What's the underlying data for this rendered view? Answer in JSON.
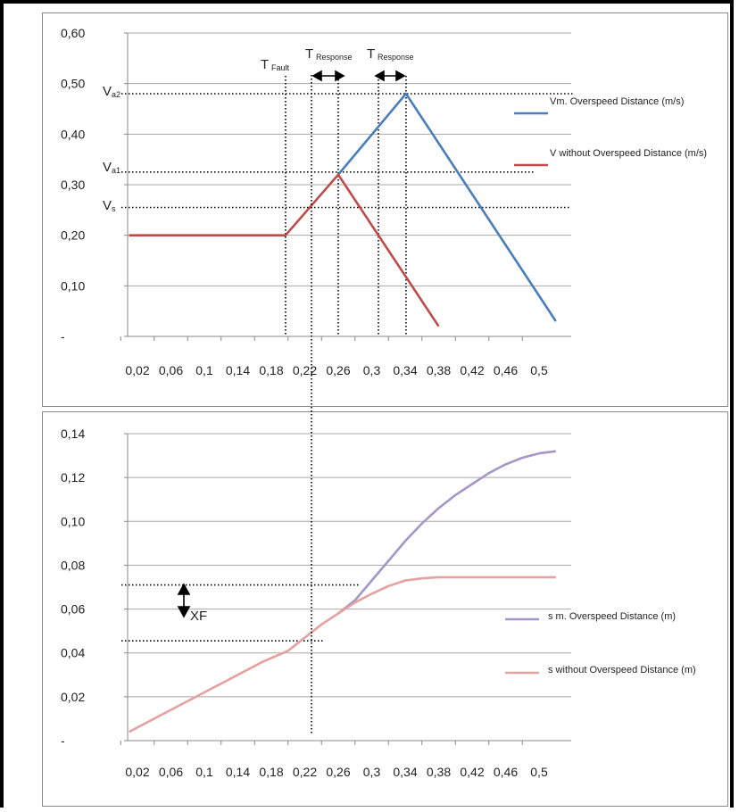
{
  "chart_data": [
    {
      "type": "line",
      "y_ticks": [
        "0,60",
        "0,50",
        "0,40",
        "0,30",
        "0,20",
        "0,10",
        "-"
      ],
      "x_ticks": [
        "0,02",
        "0,06",
        "0,1",
        "0,14",
        "0,18",
        "0,22",
        "0,26",
        "0,3",
        "0,34",
        "0,38",
        "0,42",
        "0,46",
        "0,5"
      ],
      "ylim": [
        0,
        0.6
      ],
      "grid": true,
      "legend_position": "right",
      "series": [
        {
          "name": "Vm. Overspeed Distance (m/s)",
          "color": "#4a7ebb",
          "points": [
            [
              0.26,
              0.32
            ],
            [
              0.341,
              0.48
            ],
            [
              0.52,
              0.03
            ]
          ]
        },
        {
          "name": "V without Overspeed Distance (m/s)",
          "color": "#be4b48",
          "points": [
            [
              0.01,
              0.2
            ],
            [
              0.197,
              0.2
            ],
            [
              0.26,
              0.32
            ],
            [
              0.38,
              0.02
            ]
          ]
        }
      ],
      "annotations": {
        "t_fault": {
          "main": "T",
          "sub": "Fault"
        },
        "t_response_1": {
          "main": "T",
          "sub": "Response"
        },
        "t_response_2": {
          "main": "T",
          "sub": "Response"
        },
        "va2": {
          "main": "V",
          "sub": "a2"
        },
        "va1": {
          "main": "V",
          "sub": "a1"
        },
        "vs": {
          "main": "V",
          "sub": "s"
        }
      },
      "markers": {
        "v_levels": {
          "va2": 0.48,
          "va1": 0.325,
          "vs": 0.255
        },
        "t_lines": [
          0.197,
          0.228,
          0.26,
          0.308,
          0.341
        ]
      }
    },
    {
      "type": "line",
      "y_ticks": [
        "0,14",
        "0,12",
        "0,10",
        "0,08",
        "0,06",
        "0,04",
        "0,02",
        "-"
      ],
      "x_ticks": [
        "0,02",
        "0,06",
        "0,1",
        "0,14",
        "0,18",
        "0,22",
        "0,26",
        "0,3",
        "0,34",
        "0,38",
        "0,42",
        "0,46",
        "0,5"
      ],
      "ylim": [
        0,
        0.14
      ],
      "grid": true,
      "legend_position": "right",
      "series": [
        {
          "name": "s m. Overspeed Distance (m)",
          "color": "#a696c8",
          "points": [
            [
              0.26,
              0.058
            ],
            [
              0.28,
              0.064
            ],
            [
              0.3,
              0.073
            ],
            [
              0.32,
              0.082
            ],
            [
              0.34,
              0.091
            ],
            [
              0.36,
              0.099
            ],
            [
              0.38,
              0.106
            ],
            [
              0.4,
              0.112
            ],
            [
              0.42,
              0.117
            ],
            [
              0.44,
              0.122
            ],
            [
              0.46,
              0.126
            ],
            [
              0.48,
              0.129
            ],
            [
              0.5,
              0.131
            ],
            [
              0.52,
              0.132
            ]
          ]
        },
        {
          "name": "s without Overspeed Distance (m)",
          "color": "#e5a1a0",
          "points": [
            [
              0.01,
              0.004
            ],
            [
              0.05,
              0.012
            ],
            [
              0.09,
              0.02
            ],
            [
              0.13,
              0.028
            ],
            [
              0.17,
              0.036
            ],
            [
              0.2,
              0.041
            ],
            [
              0.22,
              0.047
            ],
            [
              0.24,
              0.053
            ],
            [
              0.26,
              0.058
            ],
            [
              0.28,
              0.063
            ],
            [
              0.3,
              0.067
            ],
            [
              0.32,
              0.0705
            ],
            [
              0.34,
              0.073
            ],
            [
              0.36,
              0.074
            ],
            [
              0.38,
              0.0745
            ],
            [
              0.52,
              0.0745
            ]
          ]
        }
      ],
      "annotations": {
        "xf": "XF"
      },
      "markers": {
        "xf_upper": 0.071,
        "xf_lower": 0.0455
      }
    }
  ],
  "colors": {
    "grid": "#a8a8a8",
    "axis": "#888888",
    "dotted": "#000000"
  }
}
